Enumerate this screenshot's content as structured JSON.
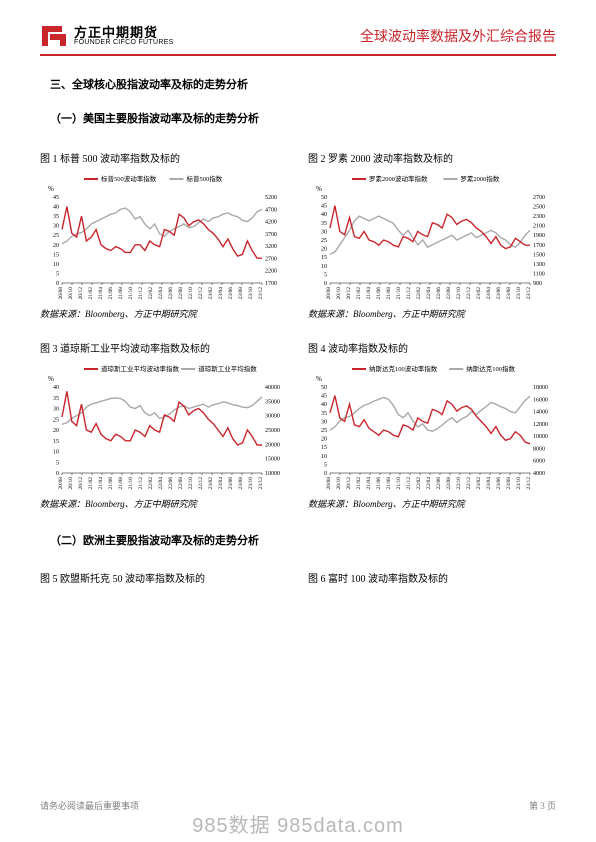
{
  "header": {
    "logo_cn": "方正中期期货",
    "logo_en": "FOUNDER CIFCO FUTURES",
    "title": "全球波动率数据及外汇综合报告",
    "logo_color": "#c9252c"
  },
  "section3_title": "三、全球核心股指波动率及标的走势分析",
  "sub1_title": "（一）美国主要股指波动率及标的走势分析",
  "sub2_title": "（二）欧洲主要股指波动率及标的走势分析",
  "source_text": "数据来源：Bloomberg、方正中期研究院",
  "footer": {
    "left": "请务必阅读最后重要事项",
    "right": "第 3 页"
  },
  "watermark": "985数据 985data.com",
  "colors": {
    "vol": "#c9252c",
    "index": "#a9a9a9",
    "axis": "#000000",
    "text": "#000000"
  },
  "chart_common": {
    "xlabels": [
      "20/08",
      "20/10",
      "20/12",
      "21/02",
      "21/04",
      "21/06",
      "21/08",
      "21/10",
      "21/12",
      "22/02",
      "22/04",
      "22/06",
      "22/08",
      "22/10",
      "22/12",
      "23/02",
      "23/04",
      "23/06",
      "23/08",
      "23/10",
      "23/12"
    ],
    "xlabel_fontsize": 6,
    "ylabel_fontsize": 7,
    "pct_symbol": "%"
  },
  "charts": [
    {
      "id": "fig1",
      "caption": "图 1  标普 500 波动率指数及标的",
      "legend_vol": "标普500波动率指数",
      "legend_idx": "标普500指数",
      "y_left": {
        "min": 0,
        "max": 45,
        "ticks": [
          0,
          5,
          10,
          15,
          20,
          25,
          30,
          35,
          40,
          45
        ]
      },
      "y_right": {
        "min": 1700,
        "max": 5200,
        "ticks": [
          1700,
          2200,
          2700,
          3200,
          3700,
          4200,
          4700,
          5200
        ]
      },
      "vol_series": [
        28,
        40,
        26,
        24,
        35,
        22,
        24,
        28,
        20,
        18,
        17,
        19,
        18,
        16,
        16,
        20,
        20,
        17,
        22,
        20,
        19,
        28,
        27,
        25,
        36,
        34,
        30,
        32,
        33,
        31,
        28,
        26,
        23,
        19,
        23,
        18,
        14,
        15,
        22,
        17,
        13,
        13
      ],
      "idx_series": [
        3300,
        3400,
        3600,
        3700,
        3750,
        3900,
        4100,
        4200,
        4300,
        4400,
        4500,
        4550,
        4700,
        4750,
        4600,
        4300,
        4400,
        4100,
        3900,
        4100,
        3700,
        3600,
        3800,
        3900,
        4000,
        4100,
        3950,
        4000,
        4150,
        4300,
        4200,
        4350,
        4400,
        4500,
        4550,
        4450,
        4400,
        4250,
        4200,
        4350,
        4600,
        4700
      ]
    },
    {
      "id": "fig2",
      "caption": "图 2  罗素 2000 波动率指数及标的",
      "legend_vol": "罗素2000波动率指数",
      "legend_idx": "罗素2000指数",
      "y_left": {
        "min": 0,
        "max": 50,
        "ticks": [
          0,
          5,
          10,
          15,
          20,
          25,
          30,
          35,
          40,
          45,
          50
        ]
      },
      "y_right": {
        "min": 900,
        "max": 2700,
        "ticks": [
          900,
          1100,
          1300,
          1500,
          1700,
          1900,
          2100,
          2300,
          2500,
          2700
        ]
      },
      "vol_series": [
        32,
        45,
        30,
        28,
        38,
        27,
        26,
        30,
        25,
        24,
        22,
        25,
        24,
        22,
        21,
        27,
        26,
        24,
        30,
        28,
        27,
        35,
        34,
        32,
        40,
        38,
        34,
        36,
        37,
        35,
        32,
        30,
        27,
        23,
        27,
        22,
        20,
        21,
        26,
        24,
        22,
        22
      ],
      "idx_series": [
        1500,
        1550,
        1700,
        1850,
        2000,
        2200,
        2300,
        2250,
        2200,
        2250,
        2300,
        2250,
        2200,
        2150,
        2000,
        1900,
        2000,
        1850,
        1700,
        1800,
        1650,
        1700,
        1750,
        1800,
        1850,
        1900,
        1800,
        1850,
        1900,
        1950,
        1850,
        1900,
        1950,
        2000,
        1950,
        1850,
        1800,
        1700,
        1650,
        1750,
        1900,
        2000
      ]
    },
    {
      "id": "fig3",
      "caption": "图 3  道琼斯工业平均波动率指数及标的",
      "legend_vol": "道琼斯工业平均波动率指数",
      "legend_idx": "道琼斯工业平均指数",
      "y_left": {
        "min": 0,
        "max": 40,
        "ticks": [
          0,
          5,
          10,
          15,
          20,
          25,
          30,
          35,
          40
        ]
      },
      "y_right": {
        "min": 10000,
        "max": 40000,
        "ticks": [
          10000,
          15000,
          20000,
          25000,
          30000,
          35000,
          40000
        ]
      },
      "vol_series": [
        26,
        38,
        24,
        22,
        32,
        20,
        19,
        23,
        18,
        16,
        15,
        18,
        17,
        15,
        15,
        20,
        19,
        17,
        22,
        20,
        19,
        27,
        26,
        24,
        33,
        31,
        27,
        29,
        30,
        28,
        25,
        23,
        20,
        17,
        21,
        16,
        13,
        14,
        20,
        17,
        13,
        13
      ],
      "idx_series": [
        27000,
        27500,
        29000,
        30000,
        31000,
        33000,
        34000,
        34500,
        35000,
        35500,
        36000,
        36200,
        36000,
        35000,
        33000,
        32500,
        33500,
        31000,
        30000,
        31000,
        29000,
        29500,
        30500,
        32000,
        33000,
        33500,
        32500,
        33000,
        33500,
        34000,
        33000,
        33800,
        34200,
        34800,
        34500,
        33800,
        33500,
        33000,
        32800,
        33500,
        35000,
        36500
      ]
    },
    {
      "id": "fig4",
      "caption": "图 4  波动率指数及标的",
      "legend_vol": "纳斯达克100波动率指数",
      "legend_idx": "纳斯达克100指数",
      "y_left": {
        "min": 0,
        "max": 50,
        "ticks": [
          0,
          5,
          10,
          15,
          20,
          25,
          30,
          35,
          40,
          45,
          50
        ]
      },
      "y_right": {
        "min": 4000,
        "max": 18000,
        "ticks": [
          4000,
          6000,
          8000,
          10000,
          12000,
          14000,
          16000,
          18000
        ]
      },
      "vol_series": [
        35,
        45,
        32,
        30,
        40,
        28,
        27,
        31,
        26,
        24,
        22,
        25,
        24,
        22,
        21,
        28,
        27,
        25,
        32,
        30,
        29,
        37,
        36,
        34,
        42,
        40,
        36,
        38,
        39,
        37,
        33,
        30,
        27,
        23,
        27,
        22,
        19,
        20,
        24,
        22,
        18,
        17
      ],
      "idx_series": [
        11000,
        11500,
        12500,
        13000,
        13200,
        13800,
        14500,
        15000,
        15300,
        15700,
        16000,
        16300,
        16000,
        15000,
        13500,
        13000,
        13800,
        12500,
        11500,
        12000,
        11000,
        10800,
        11200,
        11800,
        12500,
        13000,
        12200,
        12800,
        13200,
        14000,
        13500,
        14200,
        14800,
        15500,
        15200,
        14800,
        14500,
        14000,
        13800,
        14800,
        15800,
        16500
      ]
    },
    {
      "id": "fig5",
      "caption": "图 5  欧盟斯托克 50 波动率指数及标的"
    },
    {
      "id": "fig6",
      "caption": "图 6  富时 100 波动率指数及标的"
    }
  ]
}
